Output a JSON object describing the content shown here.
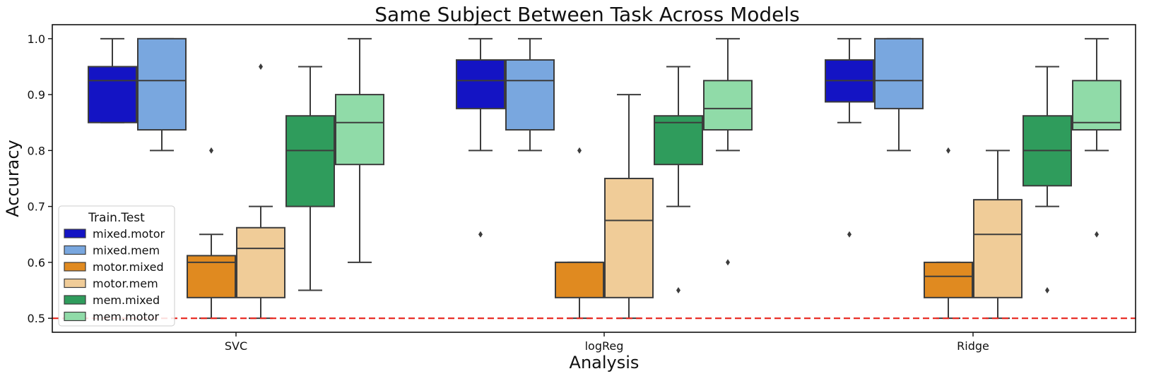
{
  "chart_data": {
    "type": "box",
    "title": "Same Subject Between Task Across Models",
    "xlabel": "Analysis",
    "ylabel": "Accuracy",
    "ylim": [
      0.475,
      1.025
    ],
    "yticks": [
      0.5,
      0.6,
      0.7,
      0.8,
      0.9,
      1.0
    ],
    "ytick_labels": [
      "0.5",
      "0.6",
      "0.7",
      "0.8",
      "0.9",
      "1.0"
    ],
    "categories": [
      "SVC",
      "logReg",
      "Ridge"
    ],
    "legend": {
      "title": "Train.Test",
      "placement": "lower-left"
    },
    "reference_line": {
      "y": 0.5,
      "color": "#e8241c",
      "style": "dashed"
    },
    "series": [
      {
        "name": "mixed.motor",
        "color": "#1414c4",
        "boxes": [
          {
            "whislo": 0.85,
            "q1": 0.85,
            "med": 0.925,
            "q3": 0.95,
            "whishi": 1.0,
            "fliers": []
          },
          {
            "whislo": 0.8,
            "q1": 0.875,
            "med": 0.925,
            "q3": 0.962,
            "whishi": 1.0,
            "fliers": [
              0.65
            ]
          },
          {
            "whislo": 0.85,
            "q1": 0.887,
            "med": 0.925,
            "q3": 0.962,
            "whishi": 1.0,
            "fliers": [
              0.65
            ]
          }
        ]
      },
      {
        "name": "mixed.mem",
        "color": "#79a7df",
        "boxes": [
          {
            "whislo": 0.8,
            "q1": 0.837,
            "med": 0.925,
            "q3": 1.0,
            "whishi": 1.0,
            "fliers": []
          },
          {
            "whislo": 0.8,
            "q1": 0.837,
            "med": 0.925,
            "q3": 0.962,
            "whishi": 1.0,
            "fliers": []
          },
          {
            "whislo": 0.8,
            "q1": 0.875,
            "med": 0.925,
            "q3": 1.0,
            "whishi": 1.0,
            "fliers": []
          }
        ]
      },
      {
        "name": "motor.mixed",
        "color": "#e08a20",
        "boxes": [
          {
            "whislo": 0.5,
            "q1": 0.537,
            "med": 0.6,
            "q3": 0.612,
            "whishi": 0.65,
            "fliers": [
              0.8
            ]
          },
          {
            "whislo": 0.5,
            "q1": 0.537,
            "med": 0.6,
            "q3": 0.6,
            "whishi": 0.6,
            "fliers": [
              0.8
            ]
          },
          {
            "whislo": 0.5,
            "q1": 0.537,
            "med": 0.575,
            "q3": 0.6,
            "whishi": 0.6,
            "fliers": [
              0.8
            ]
          }
        ]
      },
      {
        "name": "motor.mem",
        "color": "#f0cc98",
        "boxes": [
          {
            "whislo": 0.5,
            "q1": 0.537,
            "med": 0.625,
            "q3": 0.662,
            "whishi": 0.7,
            "fliers": [
              0.95
            ]
          },
          {
            "whislo": 0.5,
            "q1": 0.537,
            "med": 0.675,
            "q3": 0.75,
            "whishi": 0.9,
            "fliers": []
          },
          {
            "whislo": 0.5,
            "q1": 0.537,
            "med": 0.65,
            "q3": 0.712,
            "whishi": 0.8,
            "fliers": []
          }
        ]
      },
      {
        "name": "mem.mixed",
        "color": "#2f9c5c",
        "boxes": [
          {
            "whislo": 0.55,
            "q1": 0.7,
            "med": 0.8,
            "q3": 0.862,
            "whishi": 0.95,
            "fliers": []
          },
          {
            "whislo": 0.7,
            "q1": 0.775,
            "med": 0.85,
            "q3": 0.862,
            "whishi": 0.95,
            "fliers": [
              0.55
            ]
          },
          {
            "whislo": 0.7,
            "q1": 0.737,
            "med": 0.8,
            "q3": 0.862,
            "whishi": 0.95,
            "fliers": [
              0.55
            ]
          }
        ]
      },
      {
        "name": "mem.motor",
        "color": "#90dba8",
        "boxes": [
          {
            "whislo": 0.6,
            "q1": 0.775,
            "med": 0.85,
            "q3": 0.9,
            "whishi": 1.0,
            "fliers": []
          },
          {
            "whislo": 0.8,
            "q1": 0.837,
            "med": 0.875,
            "q3": 0.925,
            "whishi": 1.0,
            "fliers": [
              0.6
            ]
          },
          {
            "whislo": 0.8,
            "q1": 0.837,
            "med": 0.85,
            "q3": 0.925,
            "whishi": 1.0,
            "fliers": [
              0.65
            ]
          }
        ]
      }
    ]
  }
}
